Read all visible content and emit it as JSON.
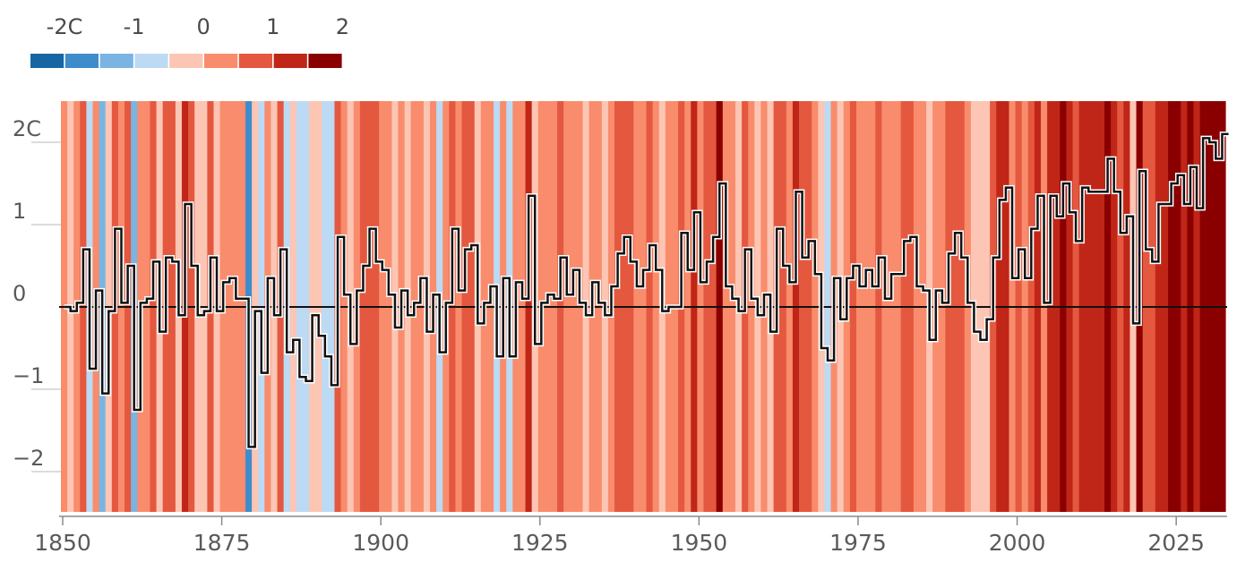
{
  "chart_data": {
    "type": "line",
    "title": "",
    "xlabel": "",
    "ylabel": "",
    "x_start": 1850,
    "x_end": 2025,
    "xlim": [
      1850,
      2025
    ],
    "ylim": [
      -2.5,
      2.5
    ],
    "x_ticks": [
      1850,
      1875,
      1900,
      1925,
      1950,
      1975,
      2000,
      2025
    ],
    "x_tick_labels": [
      "1850",
      "1875",
      "1900",
      "1925",
      "1950",
      "1975",
      "2000",
      "2025"
    ],
    "y_ticks": [
      2,
      1,
      0,
      -1,
      -2
    ],
    "y_tick_labels": [
      "2C",
      "1",
      "0",
      "−1",
      "−2"
    ],
    "stripes_shown": true,
    "step_line_shown": true,
    "zero_line_shown": true,
    "color_scale": {
      "labels": [
        "-2C",
        "-1",
        "0",
        "1",
        "2"
      ],
      "label_values": [
        -2,
        -1,
        0,
        1,
        2
      ],
      "colors": [
        "#1766a3",
        "#3f8ccb",
        "#7ab4e2",
        "#bcdaf4",
        "#fcc5b4",
        "#f88c6c",
        "#e4583f",
        "#c02618",
        "#8a0000"
      ]
    },
    "series": [
      {
        "values": [
          0.0,
          -0.05,
          0.05,
          0.7,
          -0.75,
          0.2,
          -1.05,
          -0.05,
          0.95,
          0.05,
          0.5,
          -1.25,
          0.05,
          0.1,
          0.55,
          -0.3,
          0.6,
          0.55,
          -0.1,
          1.25,
          0.5,
          -0.1,
          -0.05,
          0.6,
          -0.05,
          0.3,
          0.35,
          0.1,
          0.1,
          -1.7,
          -0.05,
          -0.8,
          0.35,
          -0.1,
          0.7,
          -0.55,
          -0.4,
          -0.85,
          -0.9,
          -0.1,
          -0.35,
          -0.6,
          -0.95,
          0.85,
          0.15,
          -0.45,
          0.2,
          0.5,
          0.95,
          0.55,
          0.45,
          0.15,
          -0.25,
          0.2,
          -0.1,
          0.05,
          0.35,
          -0.3,
          0.15,
          -0.55,
          0.05,
          0.95,
          0.2,
          0.7,
          0.75,
          -0.2,
          0.05,
          0.25,
          -0.6,
          0.35,
          -0.6,
          0.3,
          0.1,
          1.35,
          -0.45,
          0.05,
          0.15,
          0.1,
          0.6,
          0.15,
          0.45,
          0.05,
          -0.1,
          0.3,
          0.05,
          -0.1,
          0.25,
          0.65,
          0.85,
          0.55,
          0.25,
          0.45,
          0.75,
          0.45,
          -0.05,
          0.0,
          0.0,
          0.9,
          0.45,
          1.15,
          0.3,
          0.55,
          0.85,
          1.5,
          0.25,
          0.1,
          -0.05,
          0.7,
          0.1,
          -0.1,
          0.15,
          -0.3,
          0.95,
          0.5,
          0.3,
          1.4,
          0.6,
          0.8,
          0.4,
          -0.5,
          -0.65,
          0.35,
          -0.15,
          0.35,
          0.5,
          0.25,
          0.45,
          0.25,
          0.6,
          0.1,
          0.4,
          0.4,
          0.8,
          0.85,
          0.25,
          0.2,
          -0.4,
          0.2,
          0.05,
          0.65,
          0.9,
          0.6,
          0.05,
          -0.3,
          -0.4,
          -0.15,
          0.6,
          1.3,
          1.45,
          0.35,
          0.7,
          0.35,
          0.95,
          1.35,
          0.05,
          1.35,
          1.1,
          1.5,
          1.15,
          0.8,
          1.45,
          1.4,
          1.4,
          1.4,
          1.8,
          1.4,
          0.9,
          1.1,
          -0.2,
          1.65,
          0.7,
          0.55,
          1.25,
          1.25,
          1.5,
          1.6,
          1.25,
          1.7,
          1.2,
          2.05,
          2.0,
          1.8,
          2.1
        ]
      }
    ]
  }
}
